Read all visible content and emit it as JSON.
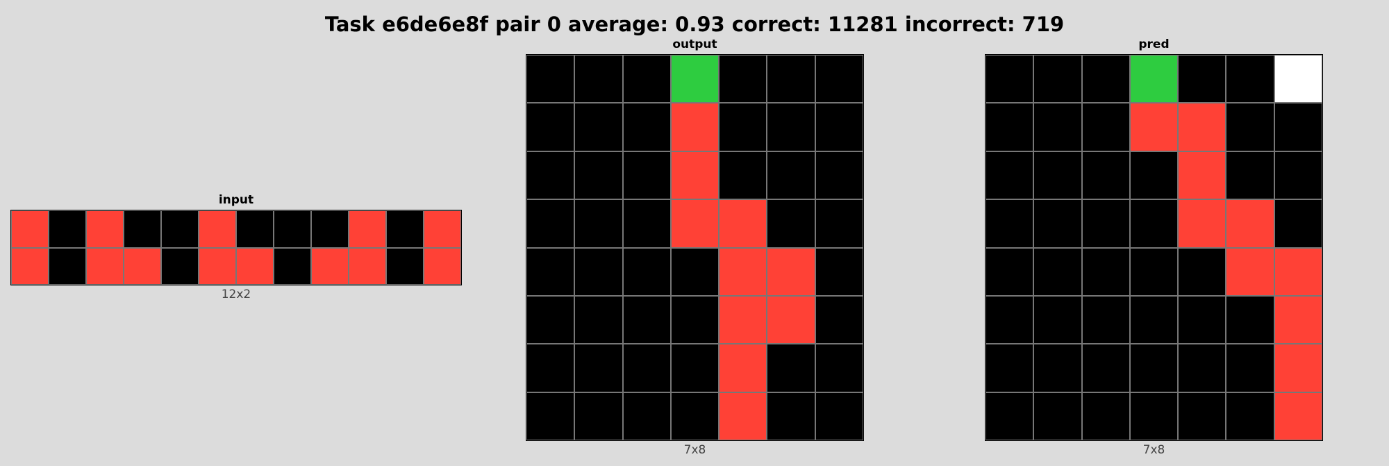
{
  "title": "Task e6de6e8f pair 0 average: 0.93 correct: 11281 incorrect: 719",
  "palette": {
    "0": "#000000",
    "1": "#0074d9",
    "2": "#ff4136",
    "3": "#2ecc40",
    "4": "#ffdc00",
    "5": "#aaaaaa",
    "6": "#f012be",
    "7": "#ff851b",
    "8": "#7fdbff",
    "9": "#870c25",
    "10": "#ffffff"
  },
  "panels": {
    "input": {
      "label": "input",
      "caption": "12x2",
      "rows": [
        [
          2,
          0,
          2,
          0,
          0,
          2,
          0,
          0,
          0,
          2,
          0,
          2
        ],
        [
          2,
          0,
          2,
          2,
          0,
          2,
          2,
          0,
          2,
          2,
          0,
          2
        ]
      ]
    },
    "output": {
      "label": "output",
      "caption": "7x8",
      "rows": [
        [
          0,
          0,
          0,
          3,
          0,
          0,
          0
        ],
        [
          0,
          0,
          0,
          2,
          0,
          0,
          0
        ],
        [
          0,
          0,
          0,
          2,
          0,
          0,
          0
        ],
        [
          0,
          0,
          0,
          2,
          2,
          0,
          0
        ],
        [
          0,
          0,
          0,
          0,
          2,
          2,
          0
        ],
        [
          0,
          0,
          0,
          0,
          2,
          2,
          0
        ],
        [
          0,
          0,
          0,
          0,
          2,
          0,
          0
        ],
        [
          0,
          0,
          0,
          0,
          2,
          0,
          0
        ]
      ]
    },
    "pred": {
      "label": "pred",
      "caption": "7x8",
      "rows": [
        [
          0,
          0,
          0,
          3,
          0,
          0,
          10
        ],
        [
          0,
          0,
          0,
          2,
          2,
          0,
          0
        ],
        [
          0,
          0,
          0,
          0,
          2,
          0,
          0
        ],
        [
          0,
          0,
          0,
          0,
          2,
          2,
          0
        ],
        [
          0,
          0,
          0,
          0,
          0,
          2,
          2
        ],
        [
          0,
          0,
          0,
          0,
          0,
          0,
          2
        ],
        [
          0,
          0,
          0,
          0,
          0,
          0,
          2
        ],
        [
          0,
          0,
          0,
          0,
          0,
          0,
          2
        ]
      ]
    }
  }
}
